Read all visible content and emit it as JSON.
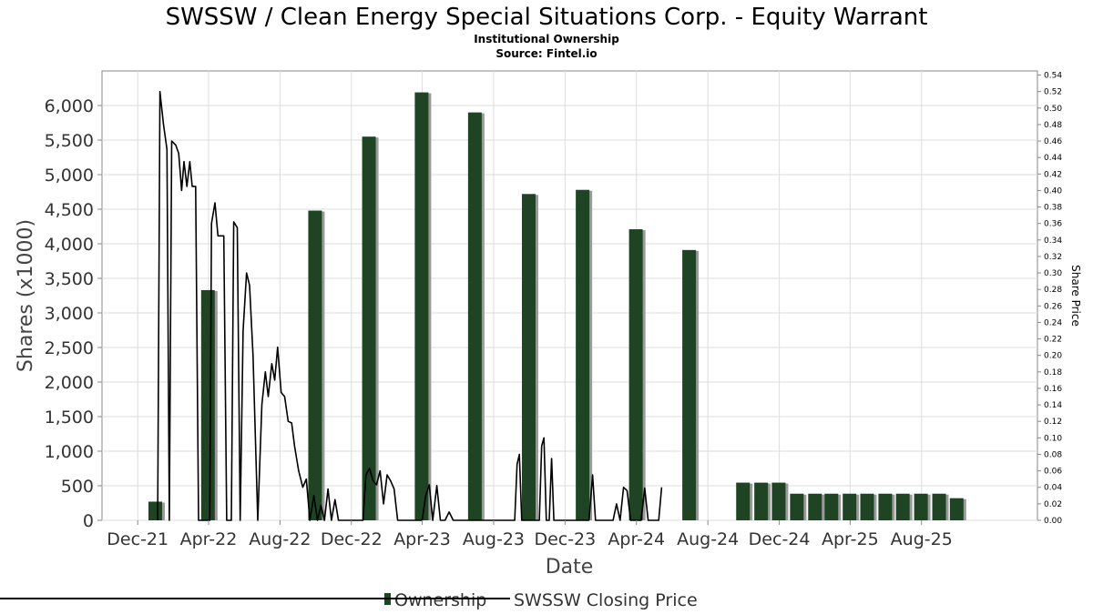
{
  "chart_data": {
    "type": "bar",
    "title": "SWSSW / Clean Energy Special Situations Corp. - Equity Warrant",
    "subtitle_lines": [
      "Institutional Ownership",
      "Source: Fintel.io"
    ],
    "xlabel": "Date",
    "ylabel": "Shares (x1000)",
    "y2label": "Share Price",
    "xlim": [
      "2021-10-01",
      "2026-02-15"
    ],
    "x_ticks": [
      {
        "date": "2021-12-01",
        "label": "Dec-21"
      },
      {
        "date": "2022-04-01",
        "label": "Apr-22"
      },
      {
        "date": "2022-08-01",
        "label": "Aug-22"
      },
      {
        "date": "2022-12-01",
        "label": "Dec-22"
      },
      {
        "date": "2023-04-01",
        "label": "Apr-23"
      },
      {
        "date": "2023-08-01",
        "label": "Aug-23"
      },
      {
        "date": "2023-12-01",
        "label": "Dec-23"
      },
      {
        "date": "2024-04-01",
        "label": "Apr-24"
      },
      {
        "date": "2024-08-01",
        "label": "Aug-24"
      },
      {
        "date": "2024-12-01",
        "label": "Dec-24"
      },
      {
        "date": "2025-04-01",
        "label": "Apr-25"
      },
      {
        "date": "2025-08-01",
        "label": "Aug-25"
      }
    ],
    "ylim": [
      0,
      6500
    ],
    "y_ticks": [
      "0",
      "500",
      "1,000",
      "1,500",
      "2,000",
      "2,500",
      "3,000",
      "3,500",
      "4,000",
      "4,500",
      "5,000",
      "5,500",
      "6,000"
    ],
    "y2lim": [
      0,
      0.545
    ],
    "y2_ticks": [
      "0.00",
      "0.02",
      "0.04",
      "0.06",
      "0.08",
      "0.10",
      "0.12",
      "0.14",
      "0.16",
      "0.18",
      "0.20",
      "0.22",
      "0.24",
      "0.26",
      "0.28",
      "0.30",
      "0.32",
      "0.34",
      "0.36",
      "0.38",
      "0.40",
      "0.42",
      "0.44",
      "0.46",
      "0.48",
      "0.50",
      "0.52",
      "0.54"
    ],
    "grid": true,
    "legend_position": "bottom",
    "colors": {
      "bar": "#1e4424",
      "bar_shadow": "#9a9a9a",
      "line": "#000000",
      "grid": "#dddddd"
    },
    "series": [
      {
        "name": "Ownership",
        "type": "bar",
        "points": [
          {
            "date": "2021-12-31",
            "value": 270
          },
          {
            "date": "2022-03-31",
            "value": 3330
          },
          {
            "date": "2022-09-30",
            "value": 4480
          },
          {
            "date": "2022-12-31",
            "value": 5550
          },
          {
            "date": "2023-03-31",
            "value": 6190
          },
          {
            "date": "2023-06-30",
            "value": 5900
          },
          {
            "date": "2023-09-30",
            "value": 4720
          },
          {
            "date": "2023-12-31",
            "value": 4780
          },
          {
            "date": "2024-03-31",
            "value": 4210
          },
          {
            "date": "2024-06-30",
            "value": 3910
          },
          {
            "date": "2024-09-30",
            "value": 545
          },
          {
            "date": "2024-10-31",
            "value": 545
          },
          {
            "date": "2024-11-30",
            "value": 545
          },
          {
            "date": "2024-12-31",
            "value": 385
          },
          {
            "date": "2025-01-31",
            "value": 385
          },
          {
            "date": "2025-02-28",
            "value": 385
          },
          {
            "date": "2025-03-31",
            "value": 385
          },
          {
            "date": "2025-04-30",
            "value": 385
          },
          {
            "date": "2025-05-31",
            "value": 385
          },
          {
            "date": "2025-06-30",
            "value": 385
          },
          {
            "date": "2025-07-31",
            "value": 385
          },
          {
            "date": "2025-08-31",
            "value": 385
          },
          {
            "date": "2025-09-30",
            "value": 320
          }
        ]
      },
      {
        "name": "SWSSW Closing Price",
        "type": "line",
        "axis": "right",
        "points": [
          {
            "date": "2022-01-04",
            "value": 0.0
          },
          {
            "date": "2022-01-08",
            "value": 0.52
          },
          {
            "date": "2022-01-14",
            "value": 0.48
          },
          {
            "date": "2022-01-20",
            "value": 0.45
          },
          {
            "date": "2022-01-24",
            "value": 0.0
          },
          {
            "date": "2022-01-28",
            "value": 0.46
          },
          {
            "date": "2022-02-04",
            "value": 0.455
          },
          {
            "date": "2022-02-09",
            "value": 0.445
          },
          {
            "date": "2022-02-14",
            "value": 0.4
          },
          {
            "date": "2022-02-18",
            "value": 0.435
          },
          {
            "date": "2022-02-23",
            "value": 0.405
          },
          {
            "date": "2022-02-28",
            "value": 0.435
          },
          {
            "date": "2022-03-04",
            "value": 0.405
          },
          {
            "date": "2022-03-10",
            "value": 0.405
          },
          {
            "date": "2022-03-15",
            "value": 0.0
          },
          {
            "date": "2022-04-03",
            "value": 0.0
          },
          {
            "date": "2022-04-06",
            "value": 0.36
          },
          {
            "date": "2022-04-12",
            "value": 0.385
          },
          {
            "date": "2022-04-17",
            "value": 0.345
          },
          {
            "date": "2022-04-23",
            "value": 0.345
          },
          {
            "date": "2022-04-27",
            "value": 0.345
          },
          {
            "date": "2022-05-02",
            "value": 0.0
          },
          {
            "date": "2022-05-10",
            "value": 0.0
          },
          {
            "date": "2022-05-14",
            "value": 0.362
          },
          {
            "date": "2022-05-20",
            "value": 0.355
          },
          {
            "date": "2022-05-25",
            "value": 0.0
          },
          {
            "date": "2022-05-30",
            "value": 0.23
          },
          {
            "date": "2022-06-05",
            "value": 0.3
          },
          {
            "date": "2022-06-10",
            "value": 0.285
          },
          {
            "date": "2022-06-16",
            "value": 0.2
          },
          {
            "date": "2022-06-24",
            "value": 0.0
          },
          {
            "date": "2022-07-01",
            "value": 0.14
          },
          {
            "date": "2022-07-07",
            "value": 0.18
          },
          {
            "date": "2022-07-12",
            "value": 0.15
          },
          {
            "date": "2022-07-18",
            "value": 0.19
          },
          {
            "date": "2022-07-23",
            "value": 0.17
          },
          {
            "date": "2022-07-28",
            "value": 0.21
          },
          {
            "date": "2022-08-03",
            "value": 0.155
          },
          {
            "date": "2022-08-09",
            "value": 0.15
          },
          {
            "date": "2022-08-15",
            "value": 0.12
          },
          {
            "date": "2022-08-21",
            "value": 0.118
          },
          {
            "date": "2022-08-26",
            "value": 0.09
          },
          {
            "date": "2022-09-02",
            "value": 0.06
          },
          {
            "date": "2022-09-09",
            "value": 0.04
          },
          {
            "date": "2022-09-15",
            "value": 0.05
          },
          {
            "date": "2022-09-21",
            "value": 0.0
          },
          {
            "date": "2022-09-28",
            "value": 0.03
          },
          {
            "date": "2022-10-04",
            "value": 0.0
          },
          {
            "date": "2022-10-10",
            "value": 0.018
          },
          {
            "date": "2022-10-16",
            "value": 0.0
          },
          {
            "date": "2022-10-22",
            "value": 0.038
          },
          {
            "date": "2022-10-28",
            "value": 0.0
          },
          {
            "date": "2022-11-03",
            "value": 0.025
          },
          {
            "date": "2022-11-09",
            "value": 0.0
          },
          {
            "date": "2022-11-15",
            "value": 0.0
          },
          {
            "date": "2022-11-21",
            "value": 0.0
          },
          {
            "date": "2022-11-27",
            "value": 0.0
          },
          {
            "date": "2022-12-03",
            "value": 0.0
          },
          {
            "date": "2022-12-09",
            "value": 0.0
          },
          {
            "date": "2022-12-15",
            "value": 0.0
          },
          {
            "date": "2022-12-21",
            "value": 0.0
          },
          {
            "date": "2022-12-26",
            "value": 0.055
          },
          {
            "date": "2023-01-01",
            "value": 0.063
          },
          {
            "date": "2023-01-07",
            "value": 0.048
          },
          {
            "date": "2023-01-13",
            "value": 0.043
          },
          {
            "date": "2023-01-19",
            "value": 0.06
          },
          {
            "date": "2023-01-25",
            "value": 0.02
          },
          {
            "date": "2023-01-31",
            "value": 0.055
          },
          {
            "date": "2023-02-06",
            "value": 0.048
          },
          {
            "date": "2023-02-12",
            "value": 0.038
          },
          {
            "date": "2023-02-18",
            "value": 0.0
          },
          {
            "date": "2023-02-24",
            "value": 0.0
          },
          {
            "date": "2023-03-02",
            "value": 0.0
          },
          {
            "date": "2023-03-08",
            "value": 0.0
          },
          {
            "date": "2023-03-14",
            "value": 0.0
          },
          {
            "date": "2023-03-20",
            "value": 0.0
          },
          {
            "date": "2023-03-26",
            "value": 0.0
          },
          {
            "date": "2023-04-01",
            "value": 0.0
          },
          {
            "date": "2023-04-07",
            "value": 0.03
          },
          {
            "date": "2023-04-13",
            "value": 0.043
          },
          {
            "date": "2023-04-19",
            "value": 0.0
          },
          {
            "date": "2023-04-26",
            "value": 0.042
          },
          {
            "date": "2023-05-02",
            "value": 0.0
          },
          {
            "date": "2023-05-10",
            "value": 0.0
          },
          {
            "date": "2023-05-17",
            "value": 0.01
          },
          {
            "date": "2023-05-24",
            "value": 0.0
          },
          {
            "date": "2023-05-31",
            "value": 0.0
          },
          {
            "date": "2023-06-07",
            "value": 0.0
          },
          {
            "date": "2023-06-14",
            "value": 0.0
          },
          {
            "date": "2023-06-21",
            "value": 0.0
          },
          {
            "date": "2023-06-28",
            "value": 0.0
          },
          {
            "date": "2023-07-05",
            "value": 0.0
          },
          {
            "date": "2023-07-12",
            "value": 0.0
          },
          {
            "date": "2023-07-19",
            "value": 0.0
          },
          {
            "date": "2023-07-26",
            "value": 0.0
          },
          {
            "date": "2023-08-02",
            "value": 0.0
          },
          {
            "date": "2023-08-09",
            "value": 0.0
          },
          {
            "date": "2023-08-16",
            "value": 0.0
          },
          {
            "date": "2023-08-23",
            "value": 0.0
          },
          {
            "date": "2023-08-30",
            "value": 0.0
          },
          {
            "date": "2023-09-06",
            "value": 0.0
          },
          {
            "date": "2023-09-10",
            "value": 0.068
          },
          {
            "date": "2023-09-14",
            "value": 0.08
          },
          {
            "date": "2023-09-18",
            "value": 0.0
          },
          {
            "date": "2023-09-23",
            "value": 0.0
          },
          {
            "date": "2023-09-28",
            "value": 0.0
          },
          {
            "date": "2023-10-03",
            "value": 0.0
          },
          {
            "date": "2023-10-08",
            "value": 0.0
          },
          {
            "date": "2023-10-13",
            "value": 0.0
          },
          {
            "date": "2023-10-18",
            "value": 0.0
          },
          {
            "date": "2023-10-22",
            "value": 0.09
          },
          {
            "date": "2023-10-26",
            "value": 0.1
          },
          {
            "date": "2023-10-30",
            "value": 0.0
          },
          {
            "date": "2023-11-04",
            "value": 0.0
          },
          {
            "date": "2023-11-08",
            "value": 0.075
          },
          {
            "date": "2023-11-12",
            "value": 0.0
          },
          {
            "date": "2023-11-18",
            "value": 0.0
          },
          {
            "date": "2023-11-24",
            "value": 0.0
          },
          {
            "date": "2023-11-30",
            "value": 0.0
          },
          {
            "date": "2023-12-06",
            "value": 0.0
          },
          {
            "date": "2023-12-12",
            "value": 0.0
          },
          {
            "date": "2023-12-18",
            "value": 0.0
          },
          {
            "date": "2023-12-24",
            "value": 0.0
          },
          {
            "date": "2023-12-30",
            "value": 0.0
          },
          {
            "date": "2024-01-05",
            "value": 0.0
          },
          {
            "date": "2024-01-11",
            "value": 0.0
          },
          {
            "date": "2024-01-17",
            "value": 0.055
          },
          {
            "date": "2024-01-22",
            "value": 0.0
          },
          {
            "date": "2024-01-28",
            "value": 0.0
          },
          {
            "date": "2024-02-03",
            "value": 0.0
          },
          {
            "date": "2024-02-09",
            "value": 0.0
          },
          {
            "date": "2024-02-15",
            "value": 0.0
          },
          {
            "date": "2024-02-21",
            "value": 0.0
          },
          {
            "date": "2024-02-27",
            "value": 0.02
          },
          {
            "date": "2024-03-04",
            "value": 0.0
          },
          {
            "date": "2024-03-10",
            "value": 0.04
          },
          {
            "date": "2024-03-16",
            "value": 0.036
          },
          {
            "date": "2024-03-22",
            "value": 0.0
          },
          {
            "date": "2024-03-28",
            "value": 0.0
          },
          {
            "date": "2024-04-03",
            "value": 0.0
          },
          {
            "date": "2024-04-09",
            "value": 0.0
          },
          {
            "date": "2024-04-15",
            "value": 0.039
          },
          {
            "date": "2024-04-21",
            "value": 0.0
          },
          {
            "date": "2024-04-27",
            "value": 0.0
          },
          {
            "date": "2024-05-03",
            "value": 0.0
          },
          {
            "date": "2024-05-09",
            "value": 0.0
          },
          {
            "date": "2024-05-14",
            "value": 0.04
          }
        ]
      }
    ]
  }
}
